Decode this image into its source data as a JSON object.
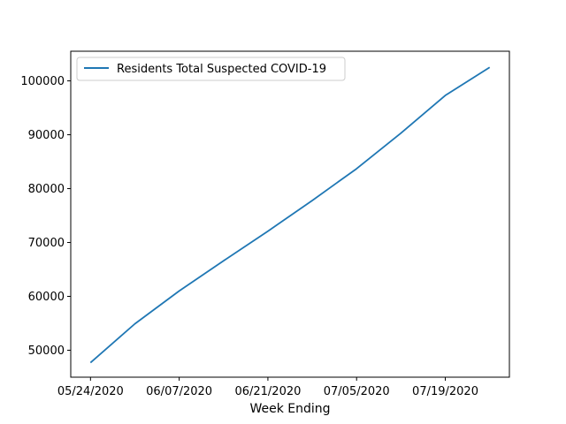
{
  "chart_data": {
    "type": "line",
    "title": "",
    "xlabel": "Week Ending",
    "ylabel": "",
    "x": [
      "05/24/2020",
      "05/31/2020",
      "06/07/2020",
      "06/14/2020",
      "06/21/2020",
      "06/28/2020",
      "07/05/2020",
      "07/12/2020",
      "07/19/2020",
      "07/26/2020"
    ],
    "series": [
      {
        "name": "Residents Total Suspected COVID-19",
        "color": "#1f77b4",
        "values": [
          47700,
          54900,
          61000,
          66600,
          72100,
          77800,
          83700,
          90300,
          97300,
          102500
        ]
      }
    ],
    "xtick_labels": [
      "05/24/2020",
      "06/07/2020",
      "06/21/2020",
      "07/05/2020",
      "07/19/2020"
    ],
    "yticks": [
      50000,
      60000,
      70000,
      80000,
      90000,
      100000
    ],
    "ylim": [
      45000,
      105500
    ],
    "grid": false,
    "legend_position": "upper-left"
  }
}
